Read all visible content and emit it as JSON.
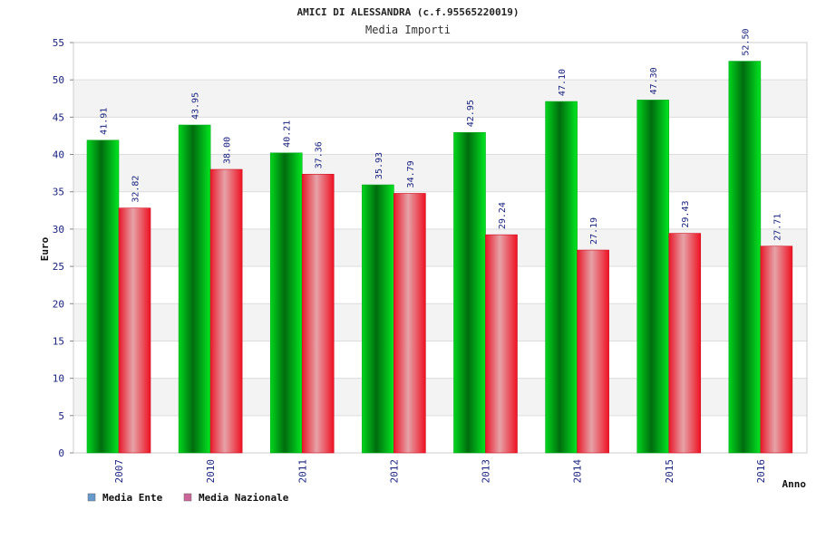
{
  "chart_data": {
    "type": "bar",
    "title": "AMICI DI ALESSANDRA (c.f.95565220019)",
    "subtitle": "Media Importi",
    "xlabel": "Anno",
    "ylabel": "Euro",
    "ylim": [
      0,
      55
    ],
    "yticks": [
      "0",
      "5",
      "10",
      "15",
      "20",
      "25",
      "30",
      "35",
      "40",
      "45",
      "50",
      "55"
    ],
    "grid": true,
    "legend_position": "bottom-left",
    "categories": [
      "2007",
      "2010",
      "2011",
      "2012",
      "2013",
      "2014",
      "2015",
      "2016"
    ],
    "series": [
      {
        "name": "Media Ente",
        "values": [
          41.91,
          43.95,
          40.21,
          35.93,
          42.95,
          47.1,
          47.3,
          52.5
        ],
        "labels": [
          "41.91",
          "43.95",
          "40.21",
          "35.93",
          "42.95",
          "47.10",
          "47.30",
          "52.50"
        ],
        "color": "#00c21a",
        "legend_color": "#6699cc"
      },
      {
        "name": "Media Nazionale",
        "values": [
          32.82,
          38.0,
          37.36,
          34.79,
          29.24,
          27.19,
          29.43,
          27.71
        ],
        "labels": [
          "32.82",
          "38.00",
          "37.36",
          "34.79",
          "29.24",
          "27.19",
          "29.43",
          "27.71"
        ],
        "color": "#ee1122",
        "legend_color": "#cc6699"
      }
    ]
  }
}
